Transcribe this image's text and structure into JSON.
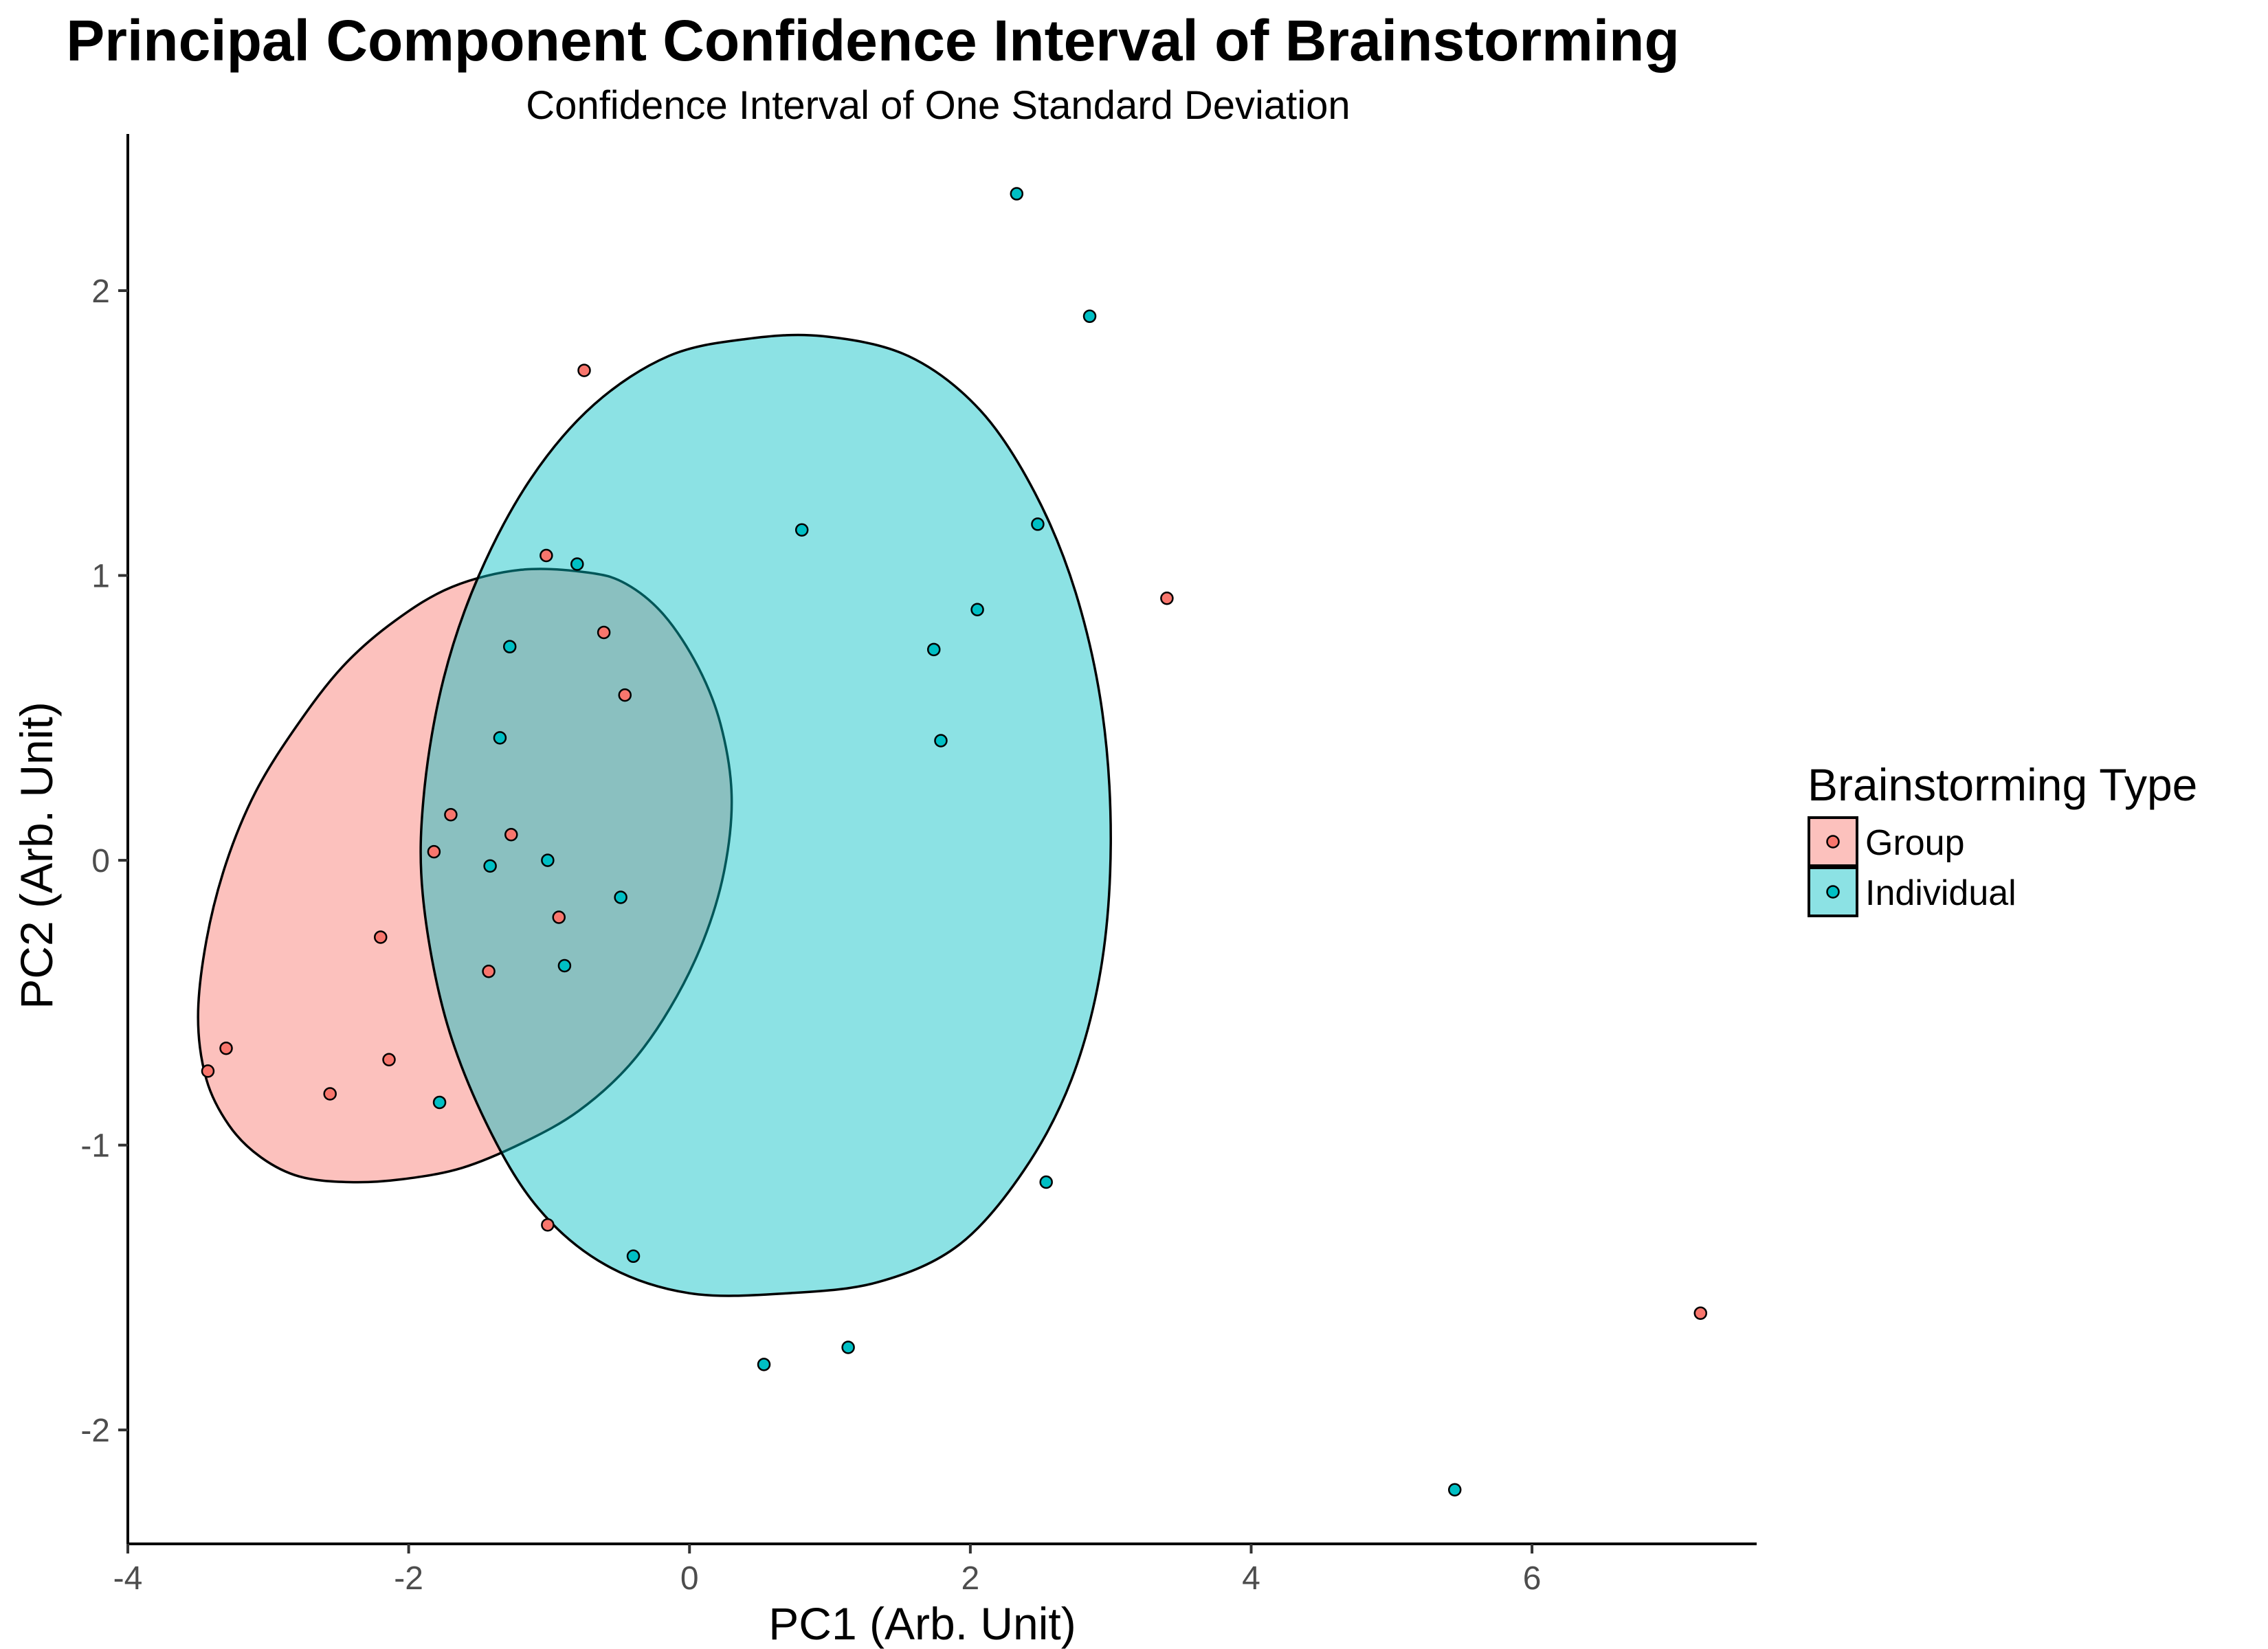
{
  "chart_data": {
    "type": "scatter",
    "title": "Principal Component Confidence Interval of Brainstorming",
    "subtitle": "Confidence Interval of One Standard Deviation",
    "xlabel": "PC1 (Arb. Unit)",
    "ylabel": "PC2 (Arb. Unit)",
    "xlim": [
      -4,
      7.6
    ],
    "ylim": [
      -2.4,
      2.55
    ],
    "x_ticks": [
      -4,
      -2,
      0,
      2,
      4,
      6
    ],
    "x_tick_labels": [
      "-4",
      "-2",
      "0",
      "2",
      "4",
      "6"
    ],
    "y_ticks": [
      -2,
      -1,
      0,
      1,
      2
    ],
    "y_tick_labels": [
      "-2",
      "-1",
      "0",
      "1",
      "2"
    ],
    "grid": false,
    "legend": {
      "title": "Brainstorming Type",
      "placement": "right"
    },
    "series": [
      {
        "name": "Group",
        "color": "#F8766D",
        "ellipse_fill": "#F8766D",
        "points": [
          {
            "x": -0.75,
            "y": 1.72
          },
          {
            "x": -1.02,
            "y": 1.07
          },
          {
            "x": -0.61,
            "y": 0.8
          },
          {
            "x": -0.46,
            "y": 0.58
          },
          {
            "x": 3.4,
            "y": 0.92
          },
          {
            "x": -1.7,
            "y": 0.16
          },
          {
            "x": -1.27,
            "y": 0.09
          },
          {
            "x": -1.82,
            "y": 0.03
          },
          {
            "x": -0.93,
            "y": -0.2
          },
          {
            "x": -2.2,
            "y": -0.27
          },
          {
            "x": -1.43,
            "y": -0.39
          },
          {
            "x": -3.3,
            "y": -0.66
          },
          {
            "x": -2.14,
            "y": -0.7
          },
          {
            "x": -3.43,
            "y": -0.74
          },
          {
            "x": -2.56,
            "y": -0.82
          },
          {
            "x": -1.01,
            "y": -1.28
          },
          {
            "x": 7.2,
            "y": -1.59
          }
        ],
        "ellipse_outline": [
          {
            "x": -0.72,
            "y": 1.01
          },
          {
            "x": -0.45,
            "y": 0.97
          },
          {
            "x": -0.18,
            "y": 0.86
          },
          {
            "x": 0.06,
            "y": 0.68
          },
          {
            "x": 0.22,
            "y": 0.48
          },
          {
            "x": 0.3,
            "y": 0.23
          },
          {
            "x": 0.25,
            "y": -0.03
          },
          {
            "x": 0.1,
            "y": -0.28
          },
          {
            "x": -0.14,
            "y": -0.52
          },
          {
            "x": -0.43,
            "y": -0.72
          },
          {
            "x": -0.79,
            "y": -0.88
          },
          {
            "x": -1.18,
            "y": -0.99
          },
          {
            "x": -1.62,
            "y": -1.08
          },
          {
            "x": -2.05,
            "y": -1.12
          },
          {
            "x": -2.42,
            "y": -1.13
          },
          {
            "x": -2.78,
            "y": -1.11
          },
          {
            "x": -3.06,
            "y": -1.04
          },
          {
            "x": -3.28,
            "y": -0.93
          },
          {
            "x": -3.44,
            "y": -0.77
          },
          {
            "x": -3.5,
            "y": -0.55
          },
          {
            "x": -3.44,
            "y": -0.28
          },
          {
            "x": -3.3,
            "y": -0.01
          },
          {
            "x": -3.09,
            "y": 0.24
          },
          {
            "x": -2.8,
            "y": 0.47
          },
          {
            "x": -2.47,
            "y": 0.68
          },
          {
            "x": -2.1,
            "y": 0.84
          },
          {
            "x": -1.69,
            "y": 0.96
          },
          {
            "x": -1.2,
            "y": 1.02
          }
        ]
      },
      {
        "name": "Individual",
        "color": "#00BFC4",
        "ellipse_fill": "#00BFC4",
        "points": [
          {
            "x": 2.33,
            "y": 2.34
          },
          {
            "x": 2.85,
            "y": 1.91
          },
          {
            "x": 0.8,
            "y": 1.16
          },
          {
            "x": 2.48,
            "y": 1.18
          },
          {
            "x": -0.8,
            "y": 1.04
          },
          {
            "x": 2.05,
            "y": 0.88
          },
          {
            "x": -1.28,
            "y": 0.75
          },
          {
            "x": 1.74,
            "y": 0.74
          },
          {
            "x": -1.35,
            "y": 0.43
          },
          {
            "x": 1.79,
            "y": 0.42
          },
          {
            "x": -1.01,
            "y": 0.0
          },
          {
            "x": -1.42,
            "y": -0.02
          },
          {
            "x": -0.49,
            "y": -0.13
          },
          {
            "x": -0.89,
            "y": -0.37
          },
          {
            "x": -1.78,
            "y": -0.85
          },
          {
            "x": 2.54,
            "y": -1.13
          },
          {
            "x": -0.4,
            "y": -1.39
          },
          {
            "x": 1.13,
            "y": -1.71
          },
          {
            "x": 0.53,
            "y": -1.77
          },
          {
            "x": 5.45,
            "y": -2.21
          }
        ],
        "ellipse_outline": [
          {
            "x": 0.95,
            "y": 1.84
          },
          {
            "x": 1.56,
            "y": 1.77
          },
          {
            "x": 2.07,
            "y": 1.58
          },
          {
            "x": 2.46,
            "y": 1.29
          },
          {
            "x": 2.75,
            "y": 0.94
          },
          {
            "x": 2.94,
            "y": 0.52
          },
          {
            "x": 3.0,
            "y": 0.06
          },
          {
            "x": 2.93,
            "y": -0.38
          },
          {
            "x": 2.72,
            "y": -0.77
          },
          {
            "x": 2.38,
            "y": -1.09
          },
          {
            "x": 1.92,
            "y": -1.35
          },
          {
            "x": 1.35,
            "y": -1.48
          },
          {
            "x": 0.7,
            "y": -1.52
          },
          {
            "x": 0.0,
            "y": -1.52
          },
          {
            "x": -0.6,
            "y": -1.42
          },
          {
            "x": -1.08,
            "y": -1.22
          },
          {
            "x": -1.45,
            "y": -0.92
          },
          {
            "x": -1.74,
            "y": -0.55
          },
          {
            "x": -1.9,
            "y": -0.12
          },
          {
            "x": -1.89,
            "y": 0.24
          },
          {
            "x": -1.75,
            "y": 0.64
          },
          {
            "x": -1.5,
            "y": 1.0
          },
          {
            "x": -1.13,
            "y": 1.34
          },
          {
            "x": -0.68,
            "y": 1.6
          },
          {
            "x": -0.15,
            "y": 1.77
          },
          {
            "x": 0.4,
            "y": 1.83
          }
        ]
      }
    ]
  }
}
